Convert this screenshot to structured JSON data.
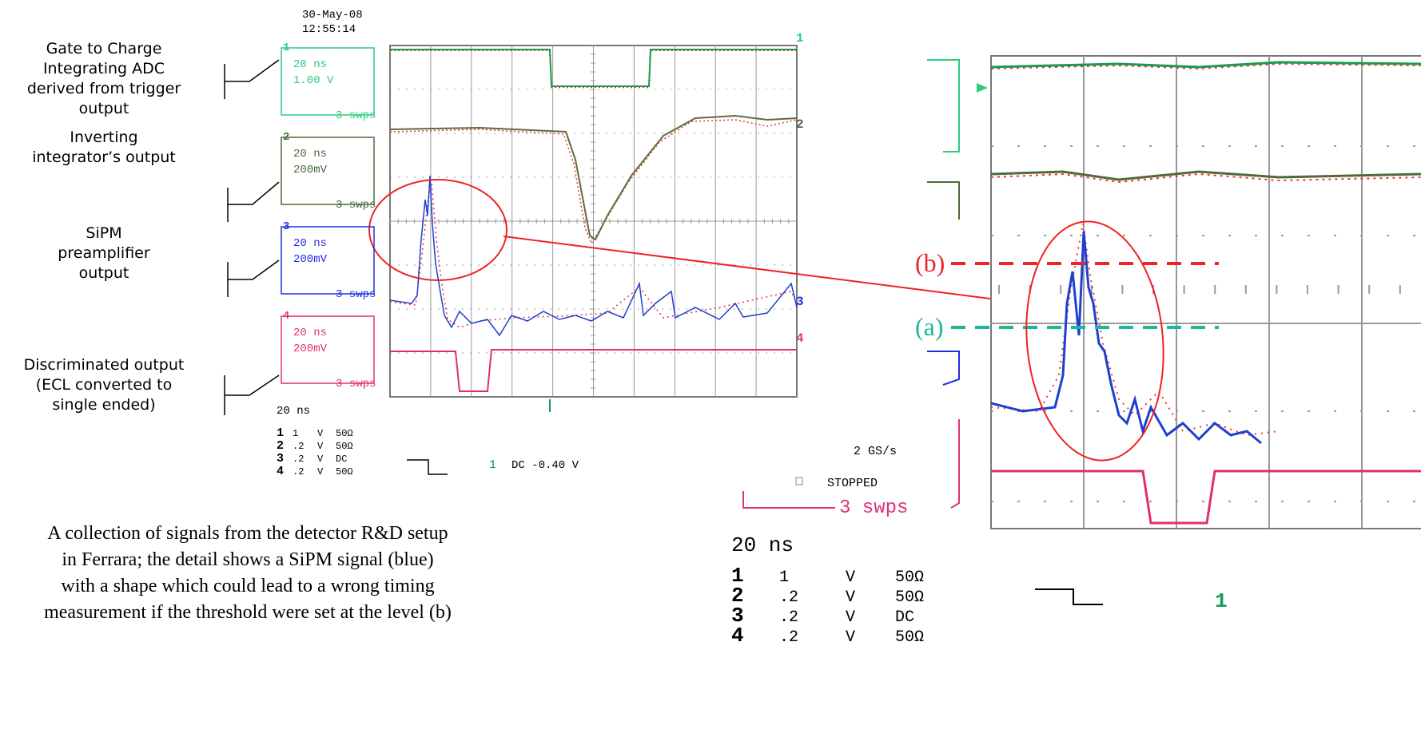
{
  "left_scope": {
    "date": "30-May-08",
    "time": "12:55:14",
    "annotations": [
      [
        "Gate to Charge",
        "Integrating ADC",
        "derived from trigger",
        "output"
      ],
      [
        "Inverting",
        "integrator’s output"
      ],
      [
        "SiPM",
        "preamplifier",
        "output"
      ],
      [
        "Discriminated  output",
        "(ECL converted to",
        "single ended)"
      ]
    ],
    "channels": [
      {
        "number": "1",
        "timebase": "20 ns",
        "scale": "1.00 V",
        "sweeps": "3 swps"
      },
      {
        "number": "2",
        "timebase": "20 ns",
        "scale": "200mV",
        "sweeps": "3 swps"
      },
      {
        "number": "3",
        "timebase": "20 ns",
        "scale": "200mV",
        "sweeps": "3 swps"
      },
      {
        "number": "4",
        "timebase": "20 ns",
        "scale": "200mV",
        "sweeps": "3 swps"
      }
    ],
    "trace_markers": [
      "1",
      "2",
      "3",
      "4"
    ],
    "timebase": "20 ns",
    "settings": [
      [
        "1",
        "1",
        "V",
        "50Ω"
      ],
      [
        "2",
        ".2",
        "V",
        "50Ω"
      ],
      [
        "3",
        ".2",
        "V",
        "DC"
      ],
      [
        "4",
        ".2",
        "V",
        "50Ω"
      ]
    ],
    "trigger": {
      "channel": "1",
      "level": "DC -0.40 V"
    }
  },
  "right_scope": {
    "threshold_b": "(b)",
    "threshold_a": "(a)",
    "sample_rate": "2 GS/s",
    "status": "STOPPED",
    "sweeps": "3 swps",
    "timebase": "20 ns",
    "settings": [
      [
        "1",
        "1",
        "V",
        "50Ω"
      ],
      [
        "2",
        ".2",
        "V",
        "50Ω"
      ],
      [
        "3",
        ".2",
        "V",
        "DC"
      ],
      [
        "4",
        ".2",
        "V",
        "50Ω"
      ]
    ],
    "trigger_channel": "1"
  },
  "caption": "A collection of signals from the detector R&D setup in Ferrara; the detail shows a SiPM signal (blue) with a shape which could lead to a wrong timing measurement if the threshold were set at the level (b)"
}
